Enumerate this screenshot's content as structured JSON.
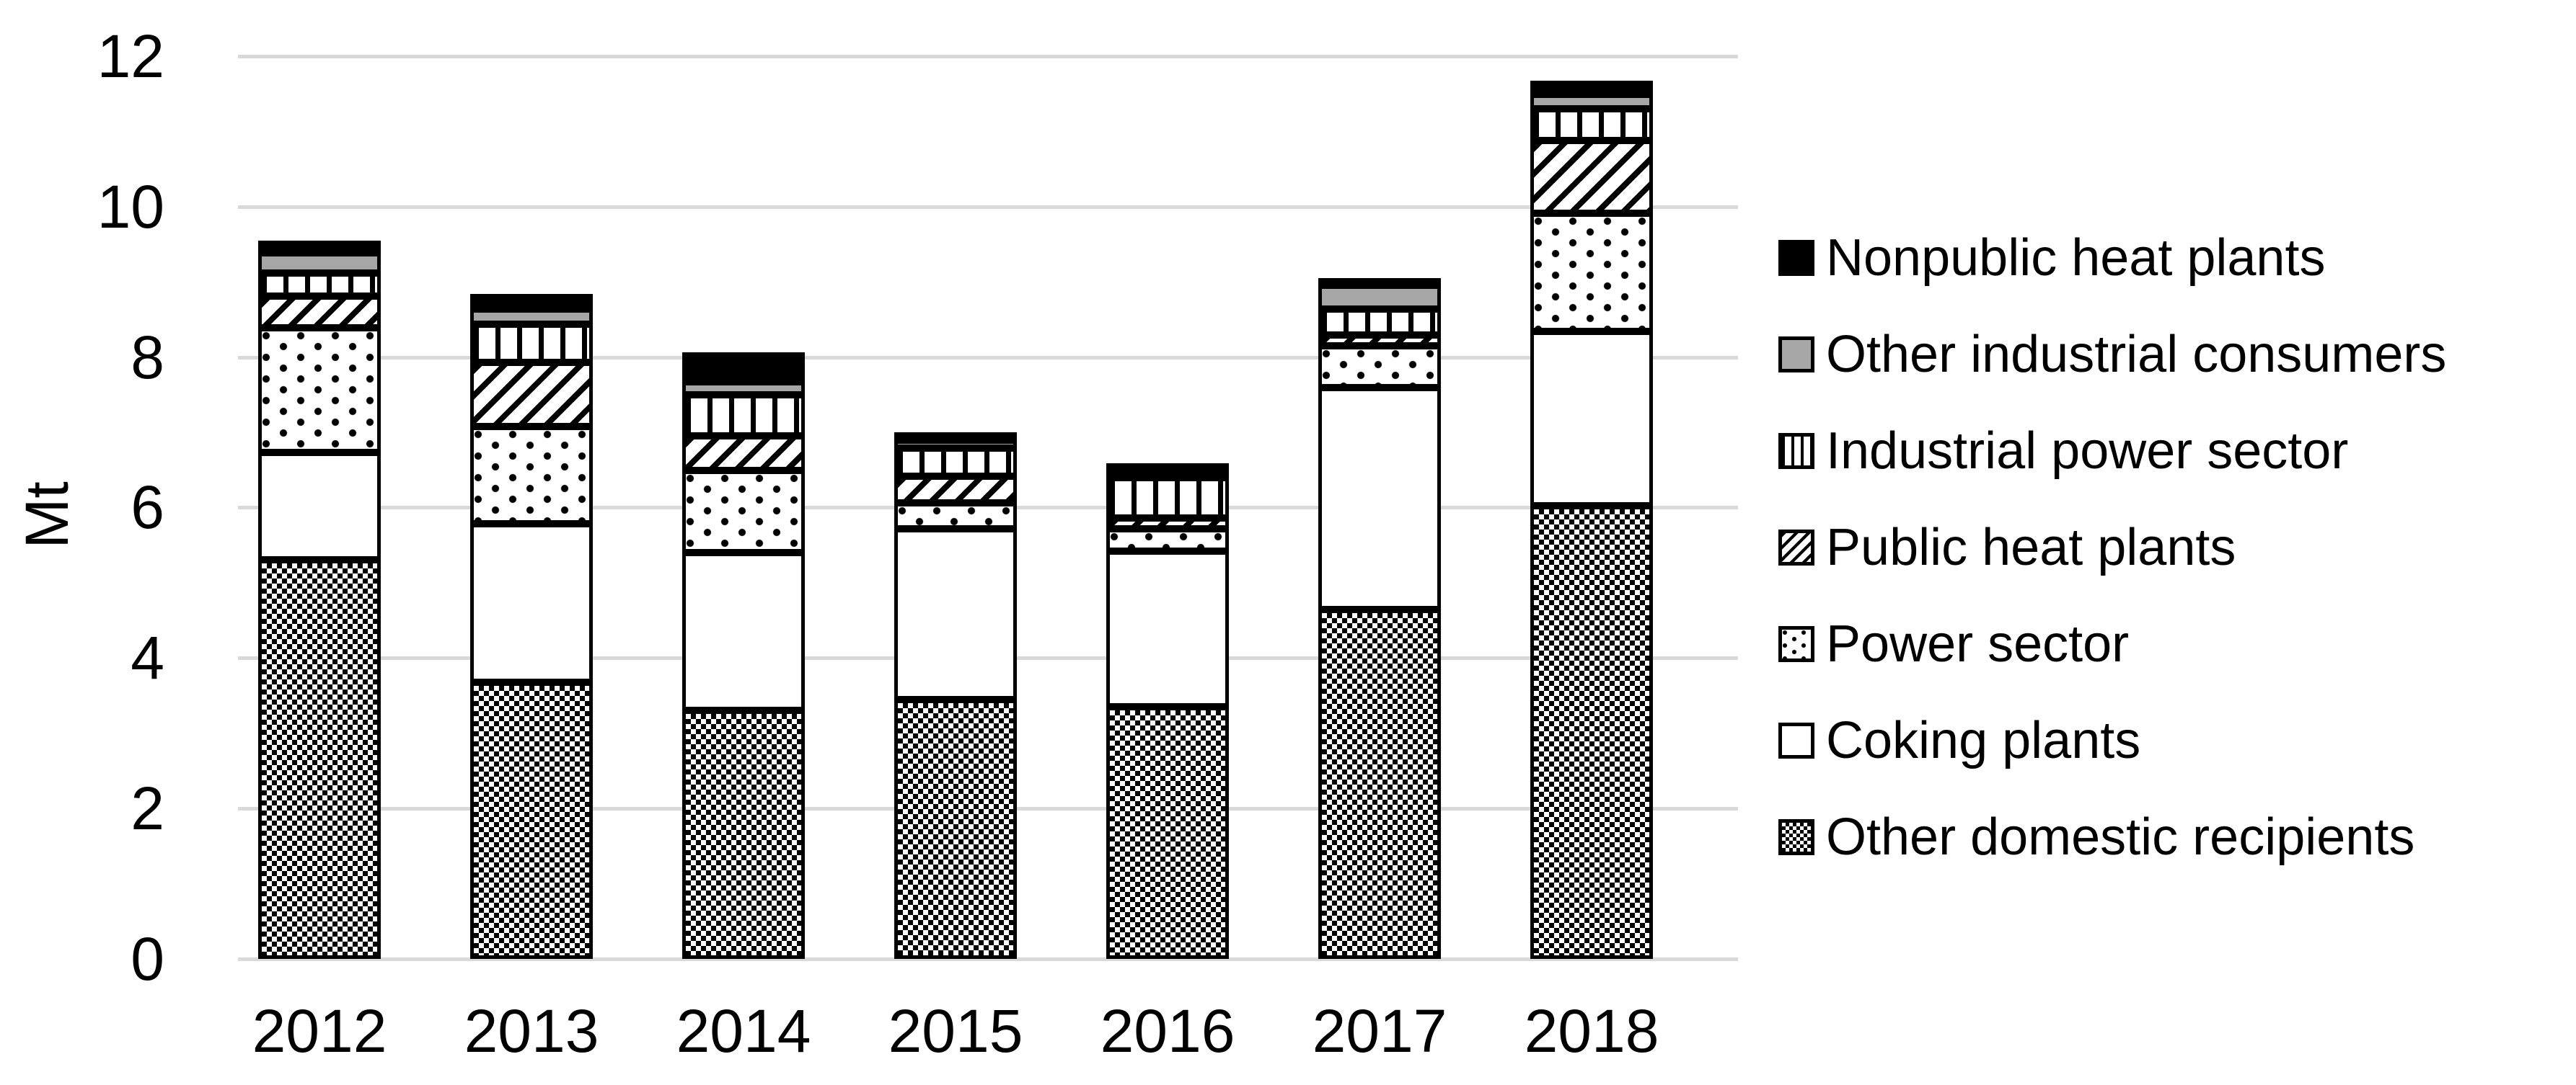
{
  "chart_data": {
    "type": "bar",
    "stacked": true,
    "title": "",
    "xlabel": "",
    "ylabel": "Mt",
    "ylim": [
      0,
      12
    ],
    "yticks": [
      0,
      2,
      4,
      6,
      8,
      10,
      12
    ],
    "grid": "horizontal",
    "legend_position": "right",
    "categories": [
      "2012",
      "2013",
      "2014",
      "2015",
      "2016",
      "2017",
      "2018"
    ],
    "series": [
      {
        "name": "Nonpublic heat plants",
        "pattern": "solid-black",
        "color": "#000000",
        "values": [
          0.16,
          0.2,
          0.39,
          0.11,
          0.09,
          0.1,
          0.18
        ]
      },
      {
        "name": "Other industrial consumers",
        "pattern": "solid-gray",
        "color": "#a6a6a6",
        "values": [
          0.27,
          0.2,
          0.17,
          0.11,
          0.05,
          0.32,
          0.19
        ]
      },
      {
        "name": "Industrial power sector",
        "pattern": "vertical-stripes",
        "color": "#000000",
        "values": [
          0.31,
          0.51,
          0.55,
          0.37,
          0.54,
          0.34,
          0.42
        ]
      },
      {
        "name": "Public heat plants",
        "pattern": "diagonal-stripes",
        "color": "#000000",
        "values": [
          0.42,
          0.85,
          0.46,
          0.35,
          0.14,
          0.14,
          0.97
        ]
      },
      {
        "name": "Power sector",
        "pattern": "dots",
        "color": "#000000",
        "values": [
          1.66,
          1.29,
          1.09,
          0.34,
          0.3,
          0.56,
          1.57
        ]
      },
      {
        "name": "Coking plants",
        "pattern": "white",
        "color": "#ffffff",
        "values": [
          1.43,
          2.11,
          2.1,
          2.27,
          2.07,
          2.95,
          2.32
        ]
      },
      {
        "name": "Other domestic recipients",
        "pattern": "checkerboard",
        "color": "#000000",
        "values": [
          5.31,
          3.68,
          3.3,
          3.45,
          3.35,
          4.64,
          6.02
        ]
      }
    ]
  },
  "colors": {
    "background": "#ffffff",
    "gridline": "#d9d9d9",
    "text": "#000000",
    "bar_border": "#000000",
    "gray_fill": "#a6a6a6"
  }
}
